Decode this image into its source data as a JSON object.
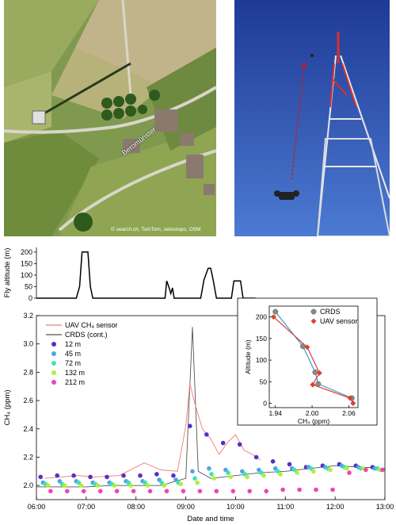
{
  "photo_left": {
    "place_label": "Beromünster",
    "credit": "© search.ch, TomTom, swisstopo, OSM"
  },
  "top_panel": {
    "ylabel": "Fly altitude (m)",
    "yticks": [
      0,
      50,
      100,
      150,
      200
    ]
  },
  "main_panel": {
    "ylabel": "CH₄ (ppm)",
    "xlabel": "Date and time",
    "yticks": [
      "2.0",
      "2.2",
      "2.4",
      "2.6",
      "2.8",
      "3.0",
      "3.2"
    ],
    "xticks": [
      "06:00",
      "07:00",
      "08:00",
      "09:00",
      "10:00",
      "11:00",
      "12:00",
      "13:00"
    ],
    "legend": {
      "uav": "UAV CH₄ sensor",
      "crds": "CRDS (cont.)",
      "heights": [
        "12 m",
        "45 m",
        "72 m",
        "132 m",
        "212 m"
      ]
    }
  },
  "inset": {
    "ylabel": "Altitude (m)",
    "xlabel": "CH₄ (ppm)",
    "xticks": [
      "1.94",
      "2.00",
      "2.06"
    ],
    "yticks": [
      "0",
      "50",
      "100",
      "150",
      "200"
    ],
    "legend": {
      "crds": "CRDS",
      "uav": "UAV sensor"
    }
  },
  "colors": {
    "uav": "#f07a7a",
    "crds": "#555555",
    "fly": "#000000",
    "h12": "#5a2ec8",
    "h45": "#4aa8e6",
    "h72": "#3ee2b4",
    "h132": "#b4ee3a",
    "h212": "#ee44b8",
    "inset_crds_fit": "#3a9ad0",
    "inset_uav_fit": "#e03a3a",
    "inset_crds_pt": "#8a8a8a",
    "inset_uav_pt": "#d8442c"
  },
  "chart_data": [
    {
      "type": "line",
      "title": "",
      "ylabel": "Fly altitude (m)",
      "ylim": [
        0,
        220
      ],
      "xlim": [
        "06:00",
        "13:00"
      ],
      "series": [
        {
          "x": [
            "06:00",
            "06:48",
            "06:52",
            "06:55",
            "07:02",
            "07:05",
            "07:08",
            "07:12",
            "08:35",
            "08:37",
            "08:40",
            "08:42",
            "08:44",
            "08:46",
            "08:48",
            "09:18",
            "09:22",
            "09:27",
            "09:30",
            "09:33",
            "09:35",
            "09:37",
            "09:55",
            "09:58",
            "10:02",
            "10:06",
            "10:09",
            "10:24"
          ],
          "y": [
            0,
            0,
            50,
            200,
            200,
            50,
            0,
            0,
            0,
            75,
            45,
            20,
            45,
            0,
            0,
            0,
            80,
            130,
            130,
            80,
            40,
            0,
            0,
            75,
            75,
            75,
            0,
            0
          ]
        }
      ]
    },
    {
      "type": "line",
      "title": "",
      "xlabel": "Date and time",
      "ylabel": "CH₄ (ppm)",
      "ylim": [
        1.9,
        3.2
      ],
      "xlim": [
        "06:00",
        "13:00"
      ],
      "legend": "top-left",
      "series": [
        {
          "name": "UAV CH₄ sensor",
          "x": [
            "06:10",
            "06:30",
            "06:50",
            "07:10",
            "07:40",
            "08:10",
            "08:30",
            "08:50",
            "09:00",
            "09:05",
            "09:10",
            "09:20",
            "09:30",
            "09:40",
            "09:50",
            "10:00",
            "10:10",
            "10:20",
            "10:30"
          ],
          "y": [
            2.05,
            2.06,
            2.07,
            2.06,
            2.07,
            2.16,
            2.11,
            2.1,
            2.42,
            2.72,
            2.6,
            2.4,
            2.33,
            2.22,
            2.3,
            2.36,
            2.25,
            2.22,
            2.18
          ]
        },
        {
          "name": "CRDS (cont.)",
          "x": [
            "06:00",
            "06:30",
            "07:00",
            "07:30",
            "08:00",
            "08:30",
            "09:00",
            "09:08",
            "09:15",
            "09:30",
            "10:00",
            "10:30",
            "11:00",
            "11:30",
            "12:00",
            "12:30",
            "13:00"
          ],
          "y": [
            1.99,
            1.99,
            1.99,
            2.0,
            2.0,
            2.0,
            2.05,
            3.12,
            2.1,
            2.05,
            2.07,
            2.09,
            2.1,
            2.12,
            2.14,
            2.13,
            2.12
          ]
        },
        {
          "name": "12 m",
          "x": [
            "06:05",
            "06:25",
            "06:45",
            "07:05",
            "07:25",
            "07:45",
            "08:05",
            "08:25",
            "08:45",
            "09:05",
            "09:25",
            "09:45",
            "10:05",
            "10:25",
            "10:45",
            "11:05",
            "11:25",
            "11:45",
            "12:05",
            "12:25",
            "12:45"
          ],
          "y": [
            2.06,
            2.07,
            2.07,
            2.06,
            2.06,
            2.07,
            2.07,
            2.08,
            2.07,
            2.42,
            2.36,
            2.3,
            2.29,
            2.2,
            2.17,
            2.15,
            2.13,
            2.14,
            2.15,
            2.14,
            2.13
          ]
        },
        {
          "name": "45 m",
          "x": [
            "06:08",
            "06:28",
            "06:48",
            "07:08",
            "07:28",
            "07:48",
            "08:08",
            "08:28",
            "08:48",
            "09:08",
            "09:28",
            "09:48",
            "10:08",
            "10:28",
            "10:48",
            "11:08",
            "11:28",
            "11:48",
            "12:08",
            "12:28",
            "12:48"
          ],
          "y": [
            2.02,
            2.03,
            2.03,
            2.02,
            2.02,
            2.03,
            2.03,
            2.04,
            2.04,
            2.1,
            2.12,
            2.11,
            2.1,
            2.11,
            2.12,
            2.12,
            2.13,
            2.13,
            2.14,
            2.13,
            2.12
          ]
        },
        {
          "name": "72 m",
          "x": [
            "06:11",
            "06:31",
            "06:51",
            "07:11",
            "07:31",
            "07:51",
            "08:11",
            "08:31",
            "08:51",
            "09:11",
            "09:31",
            "09:51",
            "10:11",
            "10:31",
            "10:51",
            "11:11",
            "11:31",
            "11:51",
            "12:11",
            "12:31",
            "12:51"
          ],
          "y": [
            2.01,
            2.01,
            2.02,
            2.01,
            2.01,
            2.02,
            2.02,
            2.02,
            2.02,
            2.05,
            2.08,
            2.09,
            2.08,
            2.09,
            2.1,
            2.11,
            2.12,
            2.12,
            2.13,
            2.12,
            2.12
          ]
        },
        {
          "name": "132 m",
          "x": [
            "06:14",
            "06:34",
            "06:54",
            "07:14",
            "07:34",
            "07:54",
            "08:14",
            "08:34",
            "08:54",
            "09:14",
            "09:34",
            "09:54",
            "10:14",
            "10:34",
            "10:54",
            "11:14",
            "11:34",
            "11:54",
            "12:14",
            "12:34",
            "12:54"
          ],
          "y": [
            2.0,
            2.0,
            2.0,
            2.0,
            2.0,
            2.0,
            2.0,
            2.0,
            2.01,
            2.02,
            2.05,
            2.06,
            2.06,
            2.07,
            2.08,
            2.09,
            2.1,
            2.11,
            2.12,
            2.12,
            2.11
          ]
        },
        {
          "name": "212 m",
          "x": [
            "06:17",
            "06:37",
            "06:57",
            "07:17",
            "07:37",
            "07:57",
            "08:17",
            "08:37",
            "08:57",
            "09:17",
            "09:37",
            "09:57",
            "10:17",
            "10:37",
            "10:57",
            "11:17",
            "11:37",
            "11:57",
            "12:17",
            "12:37",
            "12:57"
          ],
          "y": [
            1.96,
            1.96,
            1.96,
            1.96,
            1.96,
            1.96,
            1.96,
            1.96,
            1.96,
            1.96,
            1.96,
            1.96,
            1.96,
            1.96,
            1.97,
            1.97,
            1.97,
            1.97,
            2.09,
            2.11,
            2.11
          ]
        }
      ]
    },
    {
      "type": "scatter",
      "title": "",
      "xlabel": "CH₄ (ppm)",
      "ylabel": "Altitude (m)",
      "xlim": [
        1.93,
        2.075
      ],
      "ylim": [
        -10,
        225
      ],
      "legend": "top-right",
      "series": [
        {
          "name": "CRDS",
          "x": [
            1.94,
            1.985,
            2.005,
            2.01,
            2.065
          ],
          "y": [
            212,
            132,
            72,
            45,
            12
          ]
        },
        {
          "name": "UAV sensor",
          "x": [
            1.937,
            1.992,
            2.012,
            2.001,
            2.062,
            2.067
          ],
          "y": [
            200,
            130,
            70,
            43,
            12,
            0
          ]
        }
      ]
    }
  ]
}
